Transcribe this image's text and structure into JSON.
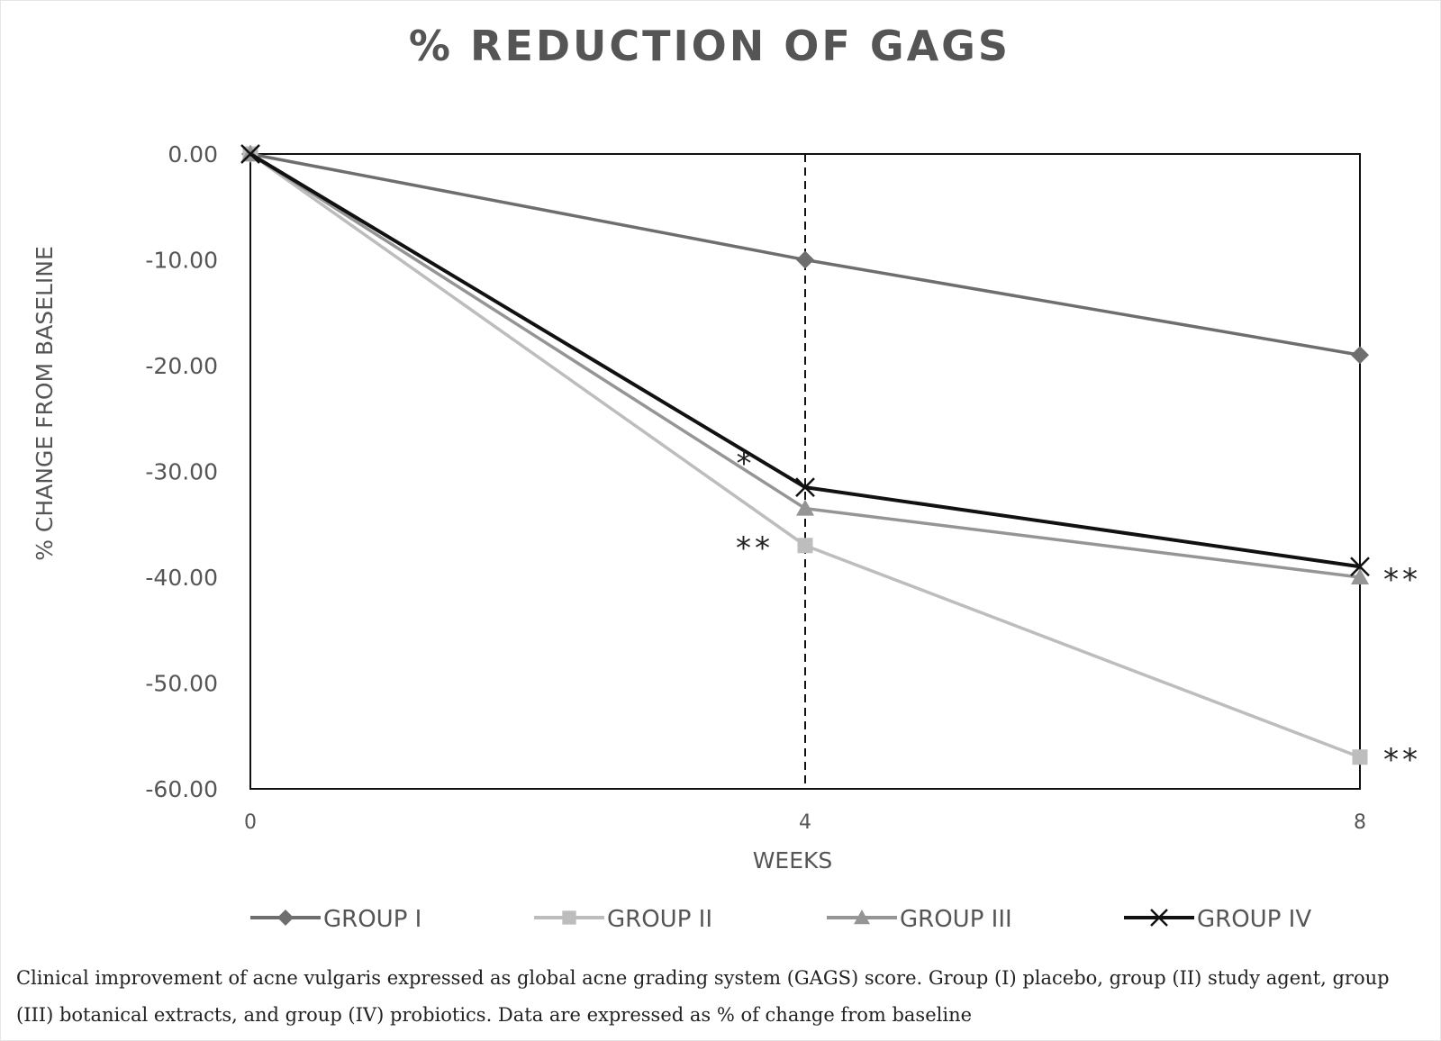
{
  "chart_data": {
    "type": "line",
    "title": "% REDUCTION OF GAGS",
    "xlabel": "WEEKS",
    "ylabel": "% CHANGE FROM BASELINE",
    "x": [
      0,
      4,
      8
    ],
    "x_tick_labels": [
      "0",
      "4",
      "8"
    ],
    "ylim": [
      -60,
      0
    ],
    "y_ticks": [
      0,
      -10,
      -20,
      -30,
      -40,
      -50,
      -60
    ],
    "y_tick_labels": [
      "0.00",
      "-10.00",
      "-20.00",
      "-30.00",
      "-40.00",
      "-50.00",
      "-60.00"
    ],
    "grid": false,
    "legend_position": "bottom",
    "reference_line": {
      "x": 4,
      "style": "dashed"
    },
    "series": [
      {
        "name": "GROUP I",
        "values": [
          0,
          -10,
          -19
        ],
        "color": "#6e6e6e",
        "marker": "diamond"
      },
      {
        "name": "GROUP II",
        "values": [
          0,
          -37,
          -57
        ],
        "color": "#bdbdbd",
        "marker": "square"
      },
      {
        "name": "GROUP III",
        "values": [
          0,
          -33.5,
          -40
        ],
        "color": "#959595",
        "marker": "triangle"
      },
      {
        "name": "GROUP IV",
        "values": [
          0,
          -31.5,
          -39
        ],
        "color": "#111111",
        "marker": "x"
      }
    ],
    "annotations": [
      {
        "text": "*",
        "x": 4,
        "y": -29
      },
      {
        "text": "**",
        "x": 4,
        "y": -37
      },
      {
        "text": "**",
        "x": 8,
        "y": -40
      },
      {
        "text": "**",
        "x": 8,
        "y": -57
      }
    ]
  },
  "caption": "Clinical improvement of acne vulgaris expressed as global acne grading system (GAGS) score. Group (I) placebo, group (II) study agent, group (III) botanical extracts, and group (IV) probiotics. Data are expressed as % of change from baseline"
}
